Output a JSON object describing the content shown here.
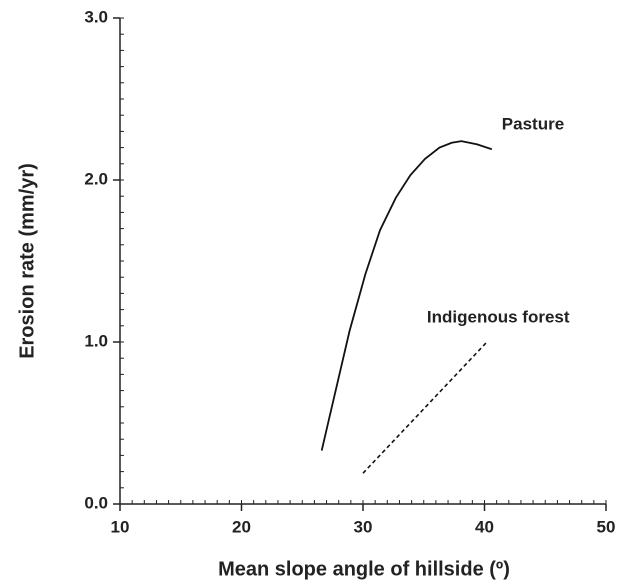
{
  "chart_data": {
    "type": "line",
    "xlabel": "Mean slope angle of hillside  (º)",
    "ylabel": "Erosion rate    (mm/yr)",
    "xlim": [
      10,
      50
    ],
    "xticks": [
      10,
      20,
      30,
      40,
      50
    ],
    "ylim": [
      0,
      3.0
    ],
    "yticks": [
      {
        "value": 0,
        "label": "0.0"
      },
      {
        "value": 1,
        "label": "1.0"
      },
      {
        "value": 2,
        "label": "2.0"
      },
      {
        "value": 3,
        "label": "3.0"
      }
    ],
    "minor_ticks": {
      "x": 1,
      "y": 0.1
    },
    "series": [
      {
        "name": "Pasture",
        "color": "#111111",
        "dash": false,
        "x": [
          26.6,
          27.5,
          28.9,
          30.2,
          31.4,
          32.7,
          33.9,
          35.1,
          36.3,
          37.3,
          38.1,
          39.4,
          40.6
        ],
        "values": [
          0.33,
          0.62,
          1.07,
          1.42,
          1.69,
          1.89,
          2.03,
          2.13,
          2.2,
          2.23,
          2.24,
          2.22,
          2.19
        ]
      },
      {
        "name": "Indigenous forest",
        "color": "#111111",
        "dash": true,
        "x": [
          30.0,
          40.2
        ],
        "values": [
          0.19,
          1.0
        ]
      }
    ]
  }
}
